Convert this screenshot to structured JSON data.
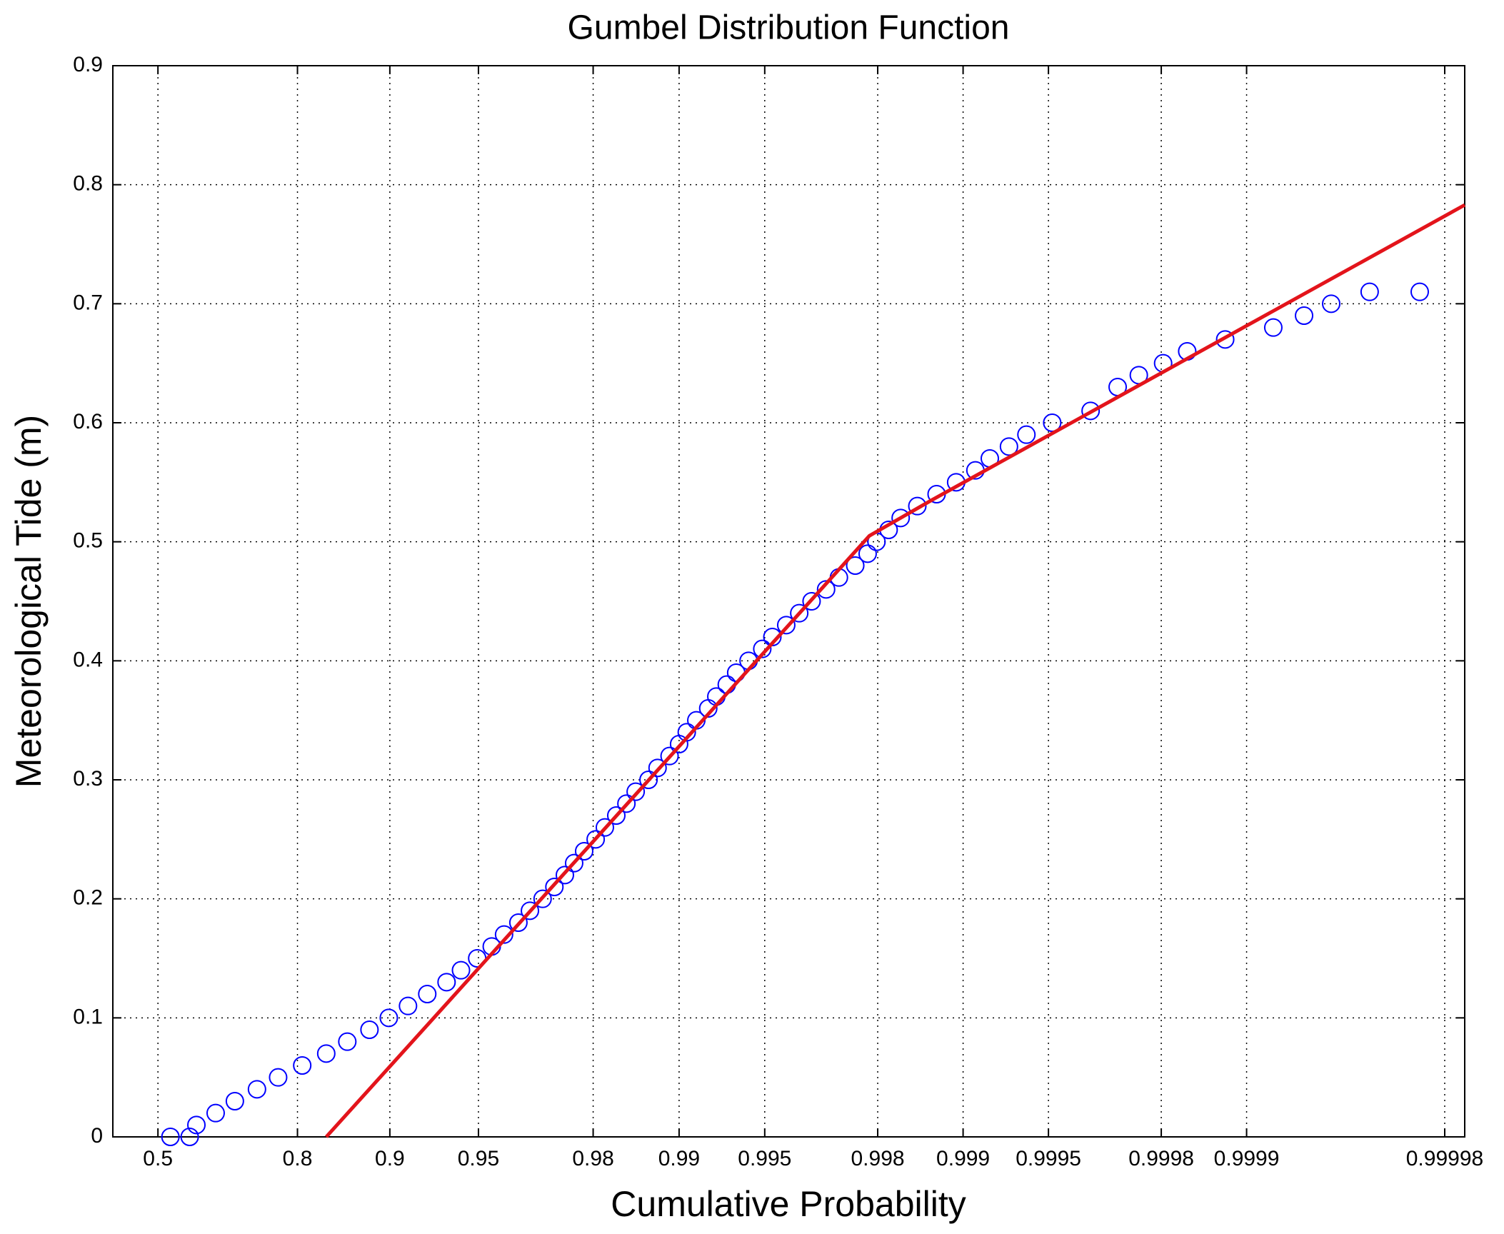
{
  "chart_data": {
    "type": "scatter",
    "title": "Gumbel Distribution Function",
    "x_label": "Cumulative Probability",
    "y_label": "Meteorological Tide  (m)",
    "xscale": "gumbel",
    "xlim": [
      0.3679,
      0.999983
    ],
    "xticks": [
      0.5,
      0.8,
      0.9,
      0.95,
      0.98,
      0.99,
      0.995,
      0.998,
      0.999,
      0.9995,
      0.9998,
      0.9999,
      0.99998
    ],
    "ylim": [
      0,
      0.9
    ],
    "yticks": [
      0,
      0.1,
      0.2,
      0.3,
      0.4,
      0.5,
      0.6,
      0.7,
      0.8,
      0.9
    ],
    "grid": true,
    "series": [
      {
        "type": "scatter",
        "color": "#0000ff",
        "x": [
          0.5346,
          0.5853,
          0.6022,
          0.6481,
          0.69,
          0.7334,
          0.7702,
          0.8068,
          0.8381,
          0.8617,
          0.8831,
          0.8992,
          0.9131,
          0.9252,
          0.9357,
          0.9426,
          0.9495,
          0.955,
          0.9592,
          0.9636,
          0.9668,
          0.97,
          0.9727,
          0.9749,
          0.9767,
          0.9785,
          0.9804,
          0.9818,
          0.9834,
          0.9847,
          0.9858,
          0.9872,
          0.9881,
          0.9892,
          0.99,
          0.9906,
          0.9913,
          0.9921,
          0.9926,
          0.9932,
          0.9937,
          0.9943,
          0.9949,
          0.9953,
          0.9958,
          0.99622,
          0.99658,
          0.99696,
          0.99726,
          0.9976,
          0.99783,
          0.99798,
          0.99817,
          0.99834,
          0.99855,
          0.99876,
          0.998942,
          0.999095,
          0.999195,
          0.999311,
          0.999402,
          0.999515,
          0.999645,
          0.999715,
          0.99976,
          0.999803,
          0.999838,
          0.999881,
          0.9999195,
          0.9999373,
          0.9999497,
          0.9999632,
          0.9999755
        ],
        "values": [
          0,
          0,
          0.01,
          0.02,
          0.03,
          0.04,
          0.05,
          0.06,
          0.07,
          0.08,
          0.09,
          0.1,
          0.11,
          0.12,
          0.13,
          0.14,
          0.15,
          0.16,
          0.17,
          0.18,
          0.19,
          0.2,
          0.21,
          0.22,
          0.23,
          0.24,
          0.25,
          0.26,
          0.27,
          0.28,
          0.29,
          0.3,
          0.31,
          0.32,
          0.33,
          0.34,
          0.35,
          0.36,
          0.37,
          0.38,
          0.39,
          0.4,
          0.41,
          0.42,
          0.43,
          0.44,
          0.45,
          0.46,
          0.47,
          0.48,
          0.49,
          0.5,
          0.51,
          0.52,
          0.53,
          0.54,
          0.55,
          0.56,
          0.57,
          0.58,
          0.59,
          0.6,
          0.61,
          0.63,
          0.64,
          0.65,
          0.66,
          0.67,
          0.68,
          0.69,
          0.7,
          0.71,
          0.71
        ]
      },
      {
        "type": "line",
        "color": "#e3141b",
        "x": [
          0.8381,
          0.99786,
          0.99871,
          0.999983
        ],
        "values": [
          0,
          0.505,
          0.535,
          0.783
        ]
      }
    ]
  }
}
